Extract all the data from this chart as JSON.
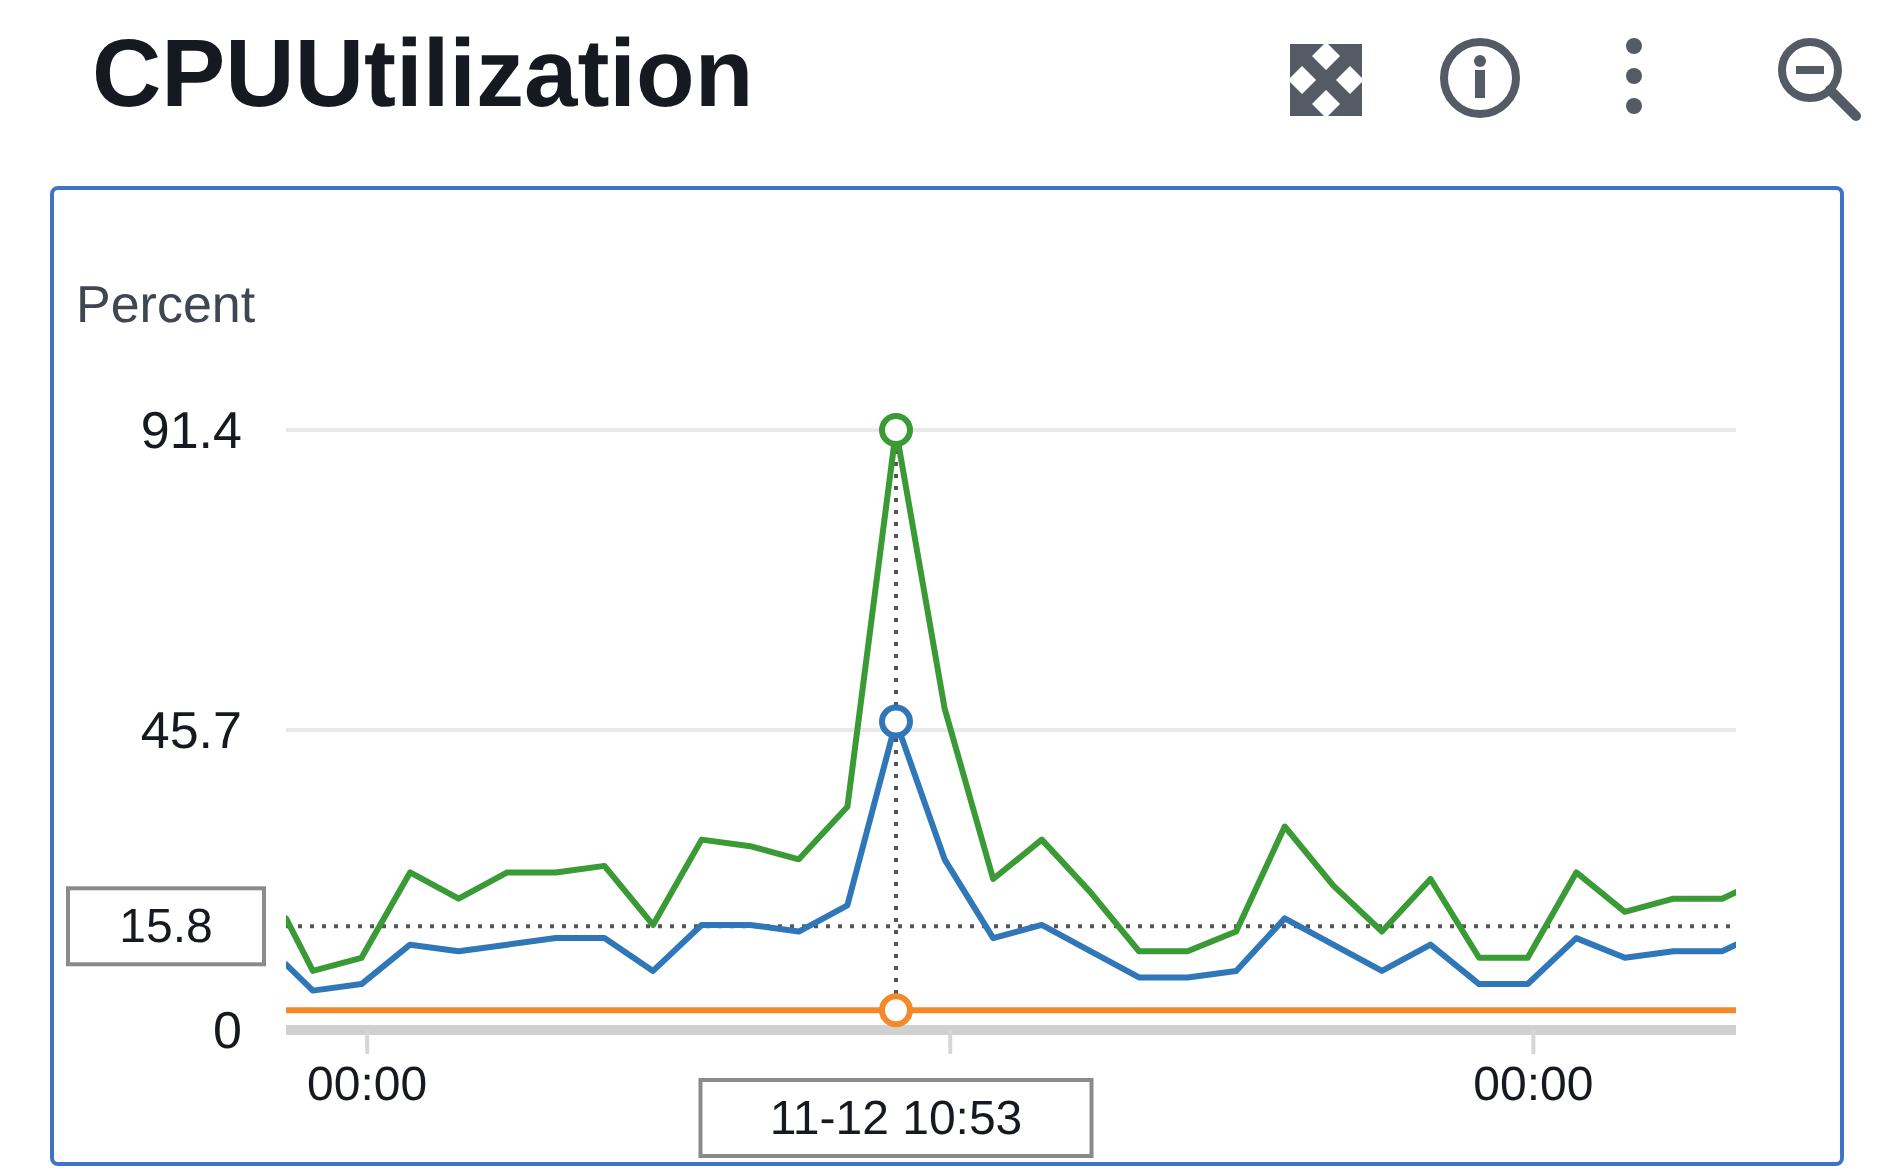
{
  "chart_data": {
    "type": "line",
    "title": "CPUUtilization",
    "ylabel": "Percent",
    "x": [
      -1.67,
      -1.1167,
      -0.1167,
      0.8833,
      1.8833,
      2.8833,
      3.8833,
      4.8833,
      5.8833,
      6.8833,
      7.8833,
      8.8833,
      9.8833,
      10.8833,
      11.8833,
      12.8833,
      13.8833,
      14.8833,
      15.8833,
      16.8833,
      17.8833,
      18.8833,
      19.8833,
      20.8833,
      21.8833,
      22.8833,
      23.8833,
      24.8833,
      25.8833,
      26.8833,
      27.8833,
      28.17
    ],
    "series": [
      {
        "color": "#3a9a36",
        "values": [
          17,
          9,
          11,
          24,
          20,
          24,
          24,
          25,
          16,
          29,
          28,
          26,
          34,
          91.4,
          49,
          23,
          29,
          21,
          12,
          12,
          15,
          31,
          22,
          15,
          23,
          11,
          11,
          24,
          18,
          20,
          20,
          21
        ]
      },
      {
        "color": "#2f77b8",
        "values": [
          10,
          6,
          7,
          13,
          12,
          13,
          14,
          14,
          9,
          16,
          16,
          15,
          19,
          47,
          26,
          14,
          16,
          12,
          8,
          8,
          9,
          17,
          13,
          9,
          13,
          7,
          7,
          14,
          11,
          12,
          12,
          13
        ]
      },
      {
        "color": "#f5892a",
        "values": [
          3,
          3,
          3,
          3,
          3,
          3,
          3,
          3,
          3,
          3,
          3,
          3,
          3,
          3,
          3,
          3,
          3,
          3,
          3,
          3,
          3,
          3,
          3,
          3,
          3,
          3,
          3,
          3,
          3,
          3,
          3,
          3
        ]
      },
      {
        "type": "scatter",
        "color": "#3a9a36",
        "marker": "circle",
        "values": [
          null,
          null,
          null,
          null,
          null,
          null,
          null,
          null,
          null,
          null,
          null,
          null,
          null,
          91.4,
          null,
          null,
          null,
          null,
          null,
          null,
          null,
          null,
          null,
          null,
          null,
          null,
          null,
          null,
          null,
          null,
          null,
          null
        ]
      },
      {
        "type": "scatter",
        "color": "#2f77b8",
        "marker": "circle",
        "values": [
          null,
          null,
          null,
          null,
          null,
          null,
          null,
          null,
          null,
          null,
          null,
          null,
          null,
          47,
          null,
          null,
          null,
          null,
          null,
          null,
          null,
          null,
          null,
          null,
          null,
          null,
          null,
          null,
          null,
          null,
          null,
          null
        ]
      },
      {
        "type": "scatter",
        "color": "#f5892a",
        "marker": "circle",
        "values": [
          null,
          null,
          null,
          null,
          null,
          null,
          null,
          null,
          null,
          null,
          null,
          null,
          null,
          3,
          null,
          null,
          null,
          null,
          null,
          null,
          null,
          null,
          null,
          null,
          null,
          null,
          null,
          null,
          null,
          null,
          null,
          null
        ]
      }
    ],
    "xlim": [
      -1.67,
      28.17
    ],
    "xticks": [
      {
        "value": 0,
        "label": "00:00"
      },
      {
        "value": 12,
        "label": null
      },
      {
        "value": 24,
        "label": "00:00"
      }
    ],
    "ylim": [
      0,
      91.4
    ],
    "yticks": [
      0,
      45.7,
      91.4
    ],
    "grid": "y",
    "marker": "none",
    "line_style": "solid",
    "ref_lines": [
      {
        "axis": "x",
        "value": 10.8833,
        "label": "11-12 10:53",
        "line_style": "dotted",
        "color": "#555555"
      },
      {
        "axis": "y",
        "value": 15.8,
        "label": "15.8",
        "line_style": "dotted",
        "color": "#555555"
      }
    ]
  }
}
